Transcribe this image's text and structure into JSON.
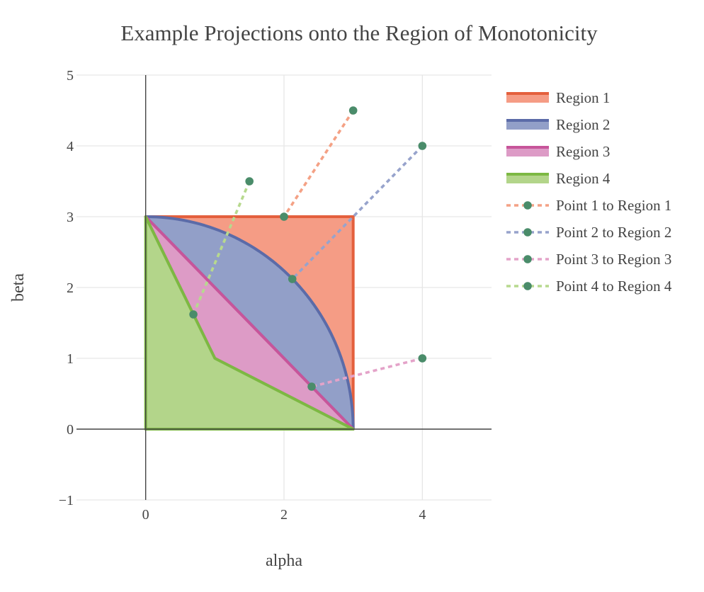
{
  "chart_data": {
    "type": "area",
    "title": "Example Projections onto the Region of Monotonicity",
    "xlabel": "alpha",
    "ylabel": "beta",
    "xlim": [
      -1,
      5
    ],
    "ylim": [
      -1,
      5
    ],
    "x_ticks": [
      "0",
      "2",
      "4"
    ],
    "x_tick_values": [
      0,
      2,
      4
    ],
    "y_ticks": [
      "−1",
      "0",
      "1",
      "2",
      "3",
      "4",
      "5"
    ],
    "y_tick_values": [
      -1,
      0,
      1,
      2,
      3,
      4,
      5
    ],
    "grid": true,
    "legend_position": "right",
    "regions": [
      {
        "name": "Region 1",
        "line_color": "#e4603d",
        "fill_color": "#f59c85",
        "x": [
          0,
          3,
          3,
          0
        ],
        "y": [
          3,
          3,
          0,
          3
        ]
      },
      {
        "name": "Region 2",
        "line_color": "#5b6ba8",
        "fill_color": "#929fc8",
        "shape": "quarter-circle",
        "center": [
          0,
          0
        ],
        "radius": 3
      },
      {
        "name": "Region 3",
        "line_color": "#c7559a",
        "fill_color": "#dd9bc6",
        "x": [
          0,
          1,
          3,
          0
        ],
        "y": [
          3,
          1,
          0,
          3
        ]
      },
      {
        "name": "Region 4",
        "line_color": "#7db843",
        "fill_color": "#b3d58a",
        "x": [
          0,
          0,
          3,
          1,
          0
        ],
        "y": [
          3,
          0,
          0,
          1,
          3
        ]
      }
    ],
    "projections": [
      {
        "name": "Point 1 to Region 1",
        "line_color": "#f4a185",
        "marker_color": "#4a8c6a",
        "x": [
          3,
          2
        ],
        "y": [
          4.5,
          3
        ]
      },
      {
        "name": "Point 2 to Region 2",
        "line_color": "#97a3cc",
        "marker_color": "#4a8c6a",
        "x": [
          4,
          2.12
        ],
        "y": [
          4,
          2.12
        ]
      },
      {
        "name": "Point 3 to Region 3",
        "line_color": "#e4a3c9",
        "marker_color": "#4a8c6a",
        "x": [
          4,
          2.4
        ],
        "y": [
          1,
          0.6
        ]
      },
      {
        "name": "Point 4 to Region 4",
        "line_color": "#b7d98e",
        "marker_color": "#4a8c6a",
        "x": [
          1.5,
          0.69
        ],
        "y": [
          3.5,
          1.62
        ]
      }
    ]
  }
}
